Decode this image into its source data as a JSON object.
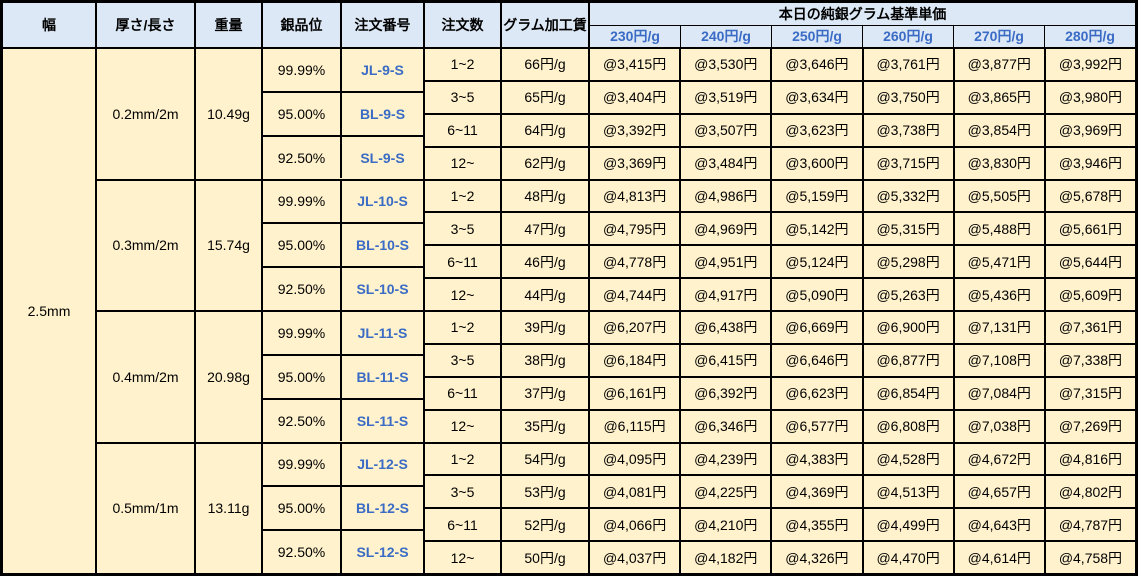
{
  "colors": {
    "header_bg": "#DCE8F5",
    "body_bg": "#FFF2CC",
    "accent_blue_text": "#3A6BC5",
    "grid_border": "#000000"
  },
  "table": {
    "headers": {
      "width": "幅",
      "thickness_length": "厚さ/長さ",
      "weight": "重量",
      "purity": "銀品位",
      "order_number": "注文番号",
      "order_qty": "注文数",
      "gram_fee": "グラム加工賃",
      "price_group": "本日の純銀グラム基準単価",
      "price_tiers": [
        "230円/g",
        "240円/g",
        "250円/g",
        "260円/g",
        "270円/g",
        "280円/g"
      ]
    },
    "width_value": "2.5mm",
    "groups": [
      {
        "thickness_length": "0.2mm/2m",
        "weight": "10.49g",
        "purities": [
          {
            "purity": "99.99%",
            "order_number": "JL-9-S"
          },
          {
            "purity": "95.00%",
            "order_number": "BL-9-S"
          },
          {
            "purity": "92.50%",
            "order_number": "SL-9-S"
          }
        ],
        "tiers": [
          {
            "qty": "1~2",
            "fee": "66円/g",
            "prices": [
              "@3,415円",
              "@3,530円",
              "@3,646円",
              "@3,761円",
              "@3,877円",
              "@3,992円"
            ]
          },
          {
            "qty": "3~5",
            "fee": "65円/g",
            "prices": [
              "@3,404円",
              "@3,519円",
              "@3,634円",
              "@3,750円",
              "@3,865円",
              "@3,980円"
            ]
          },
          {
            "qty": "6~11",
            "fee": "64円/g",
            "prices": [
              "@3,392円",
              "@3,507円",
              "@3,623円",
              "@3,738円",
              "@3,854円",
              "@3,969円"
            ]
          },
          {
            "qty": "12~",
            "fee": "62円/g",
            "prices": [
              "@3,369円",
              "@3,484円",
              "@3,600円",
              "@3,715円",
              "@3,830円",
              "@3,946円"
            ]
          }
        ]
      },
      {
        "thickness_length": "0.3mm/2m",
        "weight": "15.74g",
        "purities": [
          {
            "purity": "99.99%",
            "order_number": "JL-10-S"
          },
          {
            "purity": "95.00%",
            "order_number": "BL-10-S"
          },
          {
            "purity": "92.50%",
            "order_number": "SL-10-S"
          }
        ],
        "tiers": [
          {
            "qty": "1~2",
            "fee": "48円/g",
            "prices": [
              "@4,813円",
              "@4,986円",
              "@5,159円",
              "@5,332円",
              "@5,505円",
              "@5,678円"
            ]
          },
          {
            "qty": "3~5",
            "fee": "47円/g",
            "prices": [
              "@4,795円",
              "@4,969円",
              "@5,142円",
              "@5,315円",
              "@5,488円",
              "@5,661円"
            ]
          },
          {
            "qty": "6~11",
            "fee": "46円/g",
            "prices": [
              "@4,778円",
              "@4,951円",
              "@5,124円",
              "@5,298円",
              "@5,471円",
              "@5,644円"
            ]
          },
          {
            "qty": "12~",
            "fee": "44円/g",
            "prices": [
              "@4,744円",
              "@4,917円",
              "@5,090円",
              "@5,263円",
              "@5,436円",
              "@5,609円"
            ]
          }
        ]
      },
      {
        "thickness_length": "0.4mm/2m",
        "weight": "20.98g",
        "purities": [
          {
            "purity": "99.99%",
            "order_number": "JL-11-S"
          },
          {
            "purity": "95.00%",
            "order_number": "BL-11-S"
          },
          {
            "purity": "92.50%",
            "order_number": "SL-11-S"
          }
        ],
        "tiers": [
          {
            "qty": "1~2",
            "fee": "39円/g",
            "prices": [
              "@6,207円",
              "@6,438円",
              "@6,669円",
              "@6,900円",
              "@7,131円",
              "@7,361円"
            ]
          },
          {
            "qty": "3~5",
            "fee": "38円/g",
            "prices": [
              "@6,184円",
              "@6,415円",
              "@6,646円",
              "@6,877円",
              "@7,108円",
              "@7,338円"
            ]
          },
          {
            "qty": "6~11",
            "fee": "37円/g",
            "prices": [
              "@6,161円",
              "@6,392円",
              "@6,623円",
              "@6,854円",
              "@7,084円",
              "@7,315円"
            ]
          },
          {
            "qty": "12~",
            "fee": "35円/g",
            "prices": [
              "@6,115円",
              "@6,346円",
              "@6,577円",
              "@6,808円",
              "@7,038円",
              "@7,269円"
            ]
          }
        ]
      },
      {
        "thickness_length": "0.5mm/1m",
        "weight": "13.11g",
        "purities": [
          {
            "purity": "99.99%",
            "order_number": "JL-12-S"
          },
          {
            "purity": "95.00%",
            "order_number": "BL-12-S"
          },
          {
            "purity": "92.50%",
            "order_number": "SL-12-S"
          }
        ],
        "tiers": [
          {
            "qty": "1~2",
            "fee": "54円/g",
            "prices": [
              "@4,095円",
              "@4,239円",
              "@4,383円",
              "@4,528円",
              "@4,672円",
              "@4,816円"
            ]
          },
          {
            "qty": "3~5",
            "fee": "53円/g",
            "prices": [
              "@4,081円",
              "@4,225円",
              "@4,369円",
              "@4,513円",
              "@4,657円",
              "@4,802円"
            ]
          },
          {
            "qty": "6~11",
            "fee": "52円/g",
            "prices": [
              "@4,066円",
              "@4,210円",
              "@4,355円",
              "@4,499円",
              "@4,643円",
              "@4,787円"
            ]
          },
          {
            "qty": "12~",
            "fee": "50円/g",
            "prices": [
              "@4,037円",
              "@4,182円",
              "@4,326円",
              "@4,470円",
              "@4,614円",
              "@4,758円"
            ]
          }
        ]
      }
    ]
  }
}
